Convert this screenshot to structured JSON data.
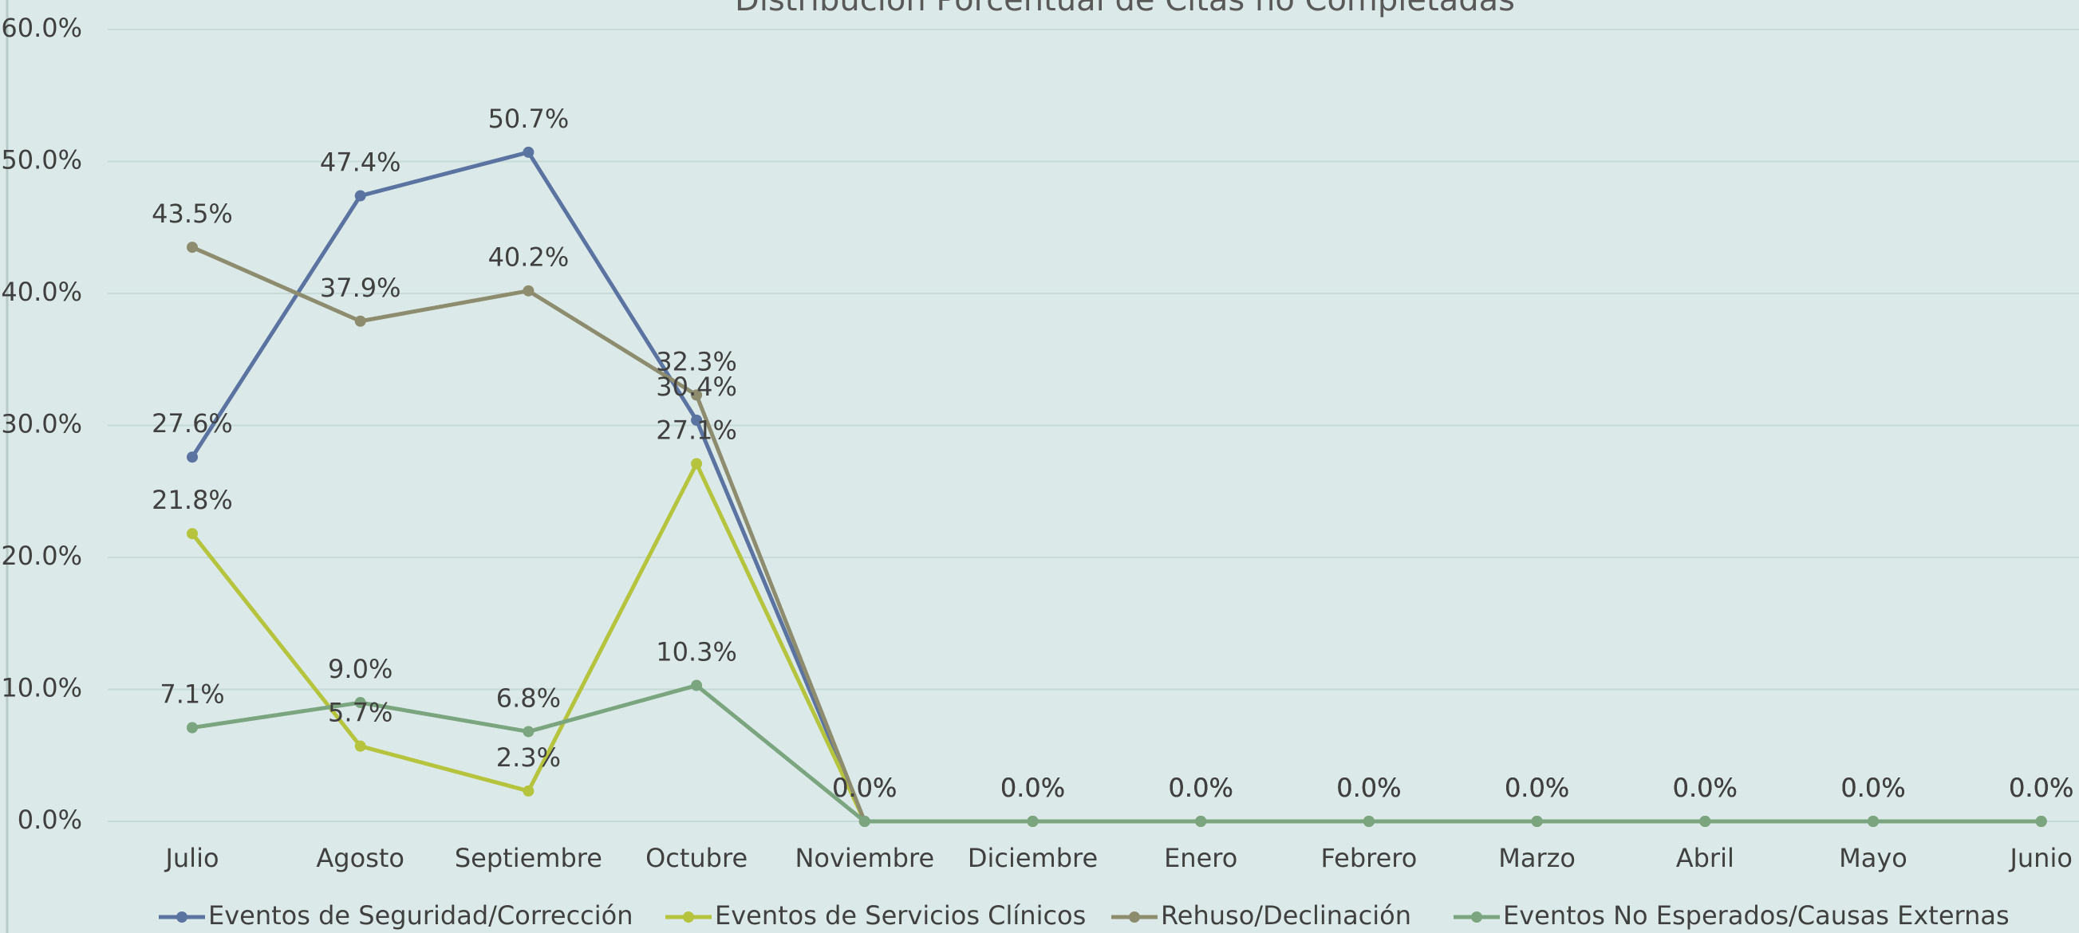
{
  "chart_data": {
    "type": "line",
    "title": "Distribución Porcentual de Citas no Completadas",
    "categories": [
      "Julio",
      "Agosto",
      "Septiembre",
      "Octubre",
      "Noviembre",
      "Diciembre",
      "Enero",
      "Febrero",
      "Marzo",
      "Abril",
      "Mayo",
      "Junio"
    ],
    "series": [
      {
        "name": "Eventos de Seguridad/Corrección",
        "color": "#5b73a0",
        "values": [
          27.6,
          47.4,
          50.7,
          30.4,
          0,
          0,
          0,
          0,
          0,
          0,
          0,
          0
        ],
        "value_labels": [
          "27.6%",
          "47.4%",
          "50.7%",
          "30.4%",
          "0.0%",
          "0.0%",
          "0.0%",
          "0.0%",
          "0.0%",
          "0.0%",
          "0.0%",
          "0.0%"
        ]
      },
      {
        "name": "Eventos de Servicios Clínicos",
        "color": "#b5c33d",
        "values": [
          21.8,
          5.7,
          2.3,
          27.1,
          0,
          0,
          0,
          0,
          0,
          0,
          0,
          0
        ],
        "value_labels": [
          "21.8%",
          "5.7%",
          "2.3%",
          "27.1%",
          "0.0%",
          "0.0%",
          "0.0%",
          "0.0%",
          "0.0%",
          "0.0%",
          "0.0%",
          "0.0%"
        ]
      },
      {
        "name": "Rehuso/Declinación",
        "color": "#8e8c6e",
        "values": [
          43.5,
          37.9,
          40.2,
          32.3,
          0,
          0,
          0,
          0,
          0,
          0,
          0,
          0
        ],
        "value_labels": [
          "43.5%",
          "37.9%",
          "40.2%",
          "32.3%",
          "0.0%",
          "0.0%",
          "0.0%",
          "0.0%",
          "0.0%",
          "0.0%",
          "0.0%",
          "0.0%"
        ]
      },
      {
        "name": "Eventos No Esperados/Causas Externas",
        "color": "#7aa57f",
        "values": [
          7.1,
          9.0,
          6.8,
          10.3,
          0,
          0,
          0,
          0,
          0,
          0,
          0,
          0
        ],
        "value_labels": [
          "7.1%",
          "9.0%",
          "6.8%",
          "10.3%",
          "0.0%",
          "0.0%",
          "0.0%",
          "0.0%",
          "0.0%",
          "0.0%",
          "0.0%",
          "0.0%"
        ]
      }
    ],
    "ylim": [
      0,
      60
    ],
    "yticks": [
      {
        "value": 0,
        "label": "0.0%"
      },
      {
        "value": 10,
        "label": "10.0%"
      },
      {
        "value": 20,
        "label": "20.0%"
      },
      {
        "value": 30,
        "label": "30.0%"
      },
      {
        "value": 40,
        "label": "40.0%"
      },
      {
        "value": 50,
        "label": "50.0%"
      },
      {
        "value": 60,
        "label": "60.0%"
      }
    ],
    "grid": true,
    "legend": "bottom"
  }
}
